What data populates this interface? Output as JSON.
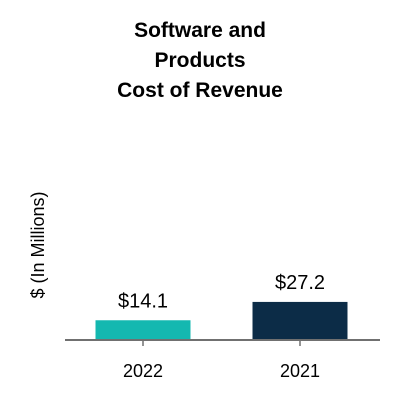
{
  "chart_data": {
    "type": "bar",
    "title_lines": [
      "Software and",
      "Products",
      "Cost of Revenue"
    ],
    "xlabel": "",
    "ylabel": "$ (In Millions)",
    "categories": [
      "2022",
      "2021"
    ],
    "values": [
      14.1,
      27.2
    ],
    "data_labels": [
      "$14.1",
      "$27.2"
    ],
    "bar_colors": [
      "#14b8b0",
      "#0c2c47"
    ],
    "axis_color": "#707070",
    "ylim": [
      0,
      200
    ],
    "grid": false,
    "legend": "none"
  }
}
